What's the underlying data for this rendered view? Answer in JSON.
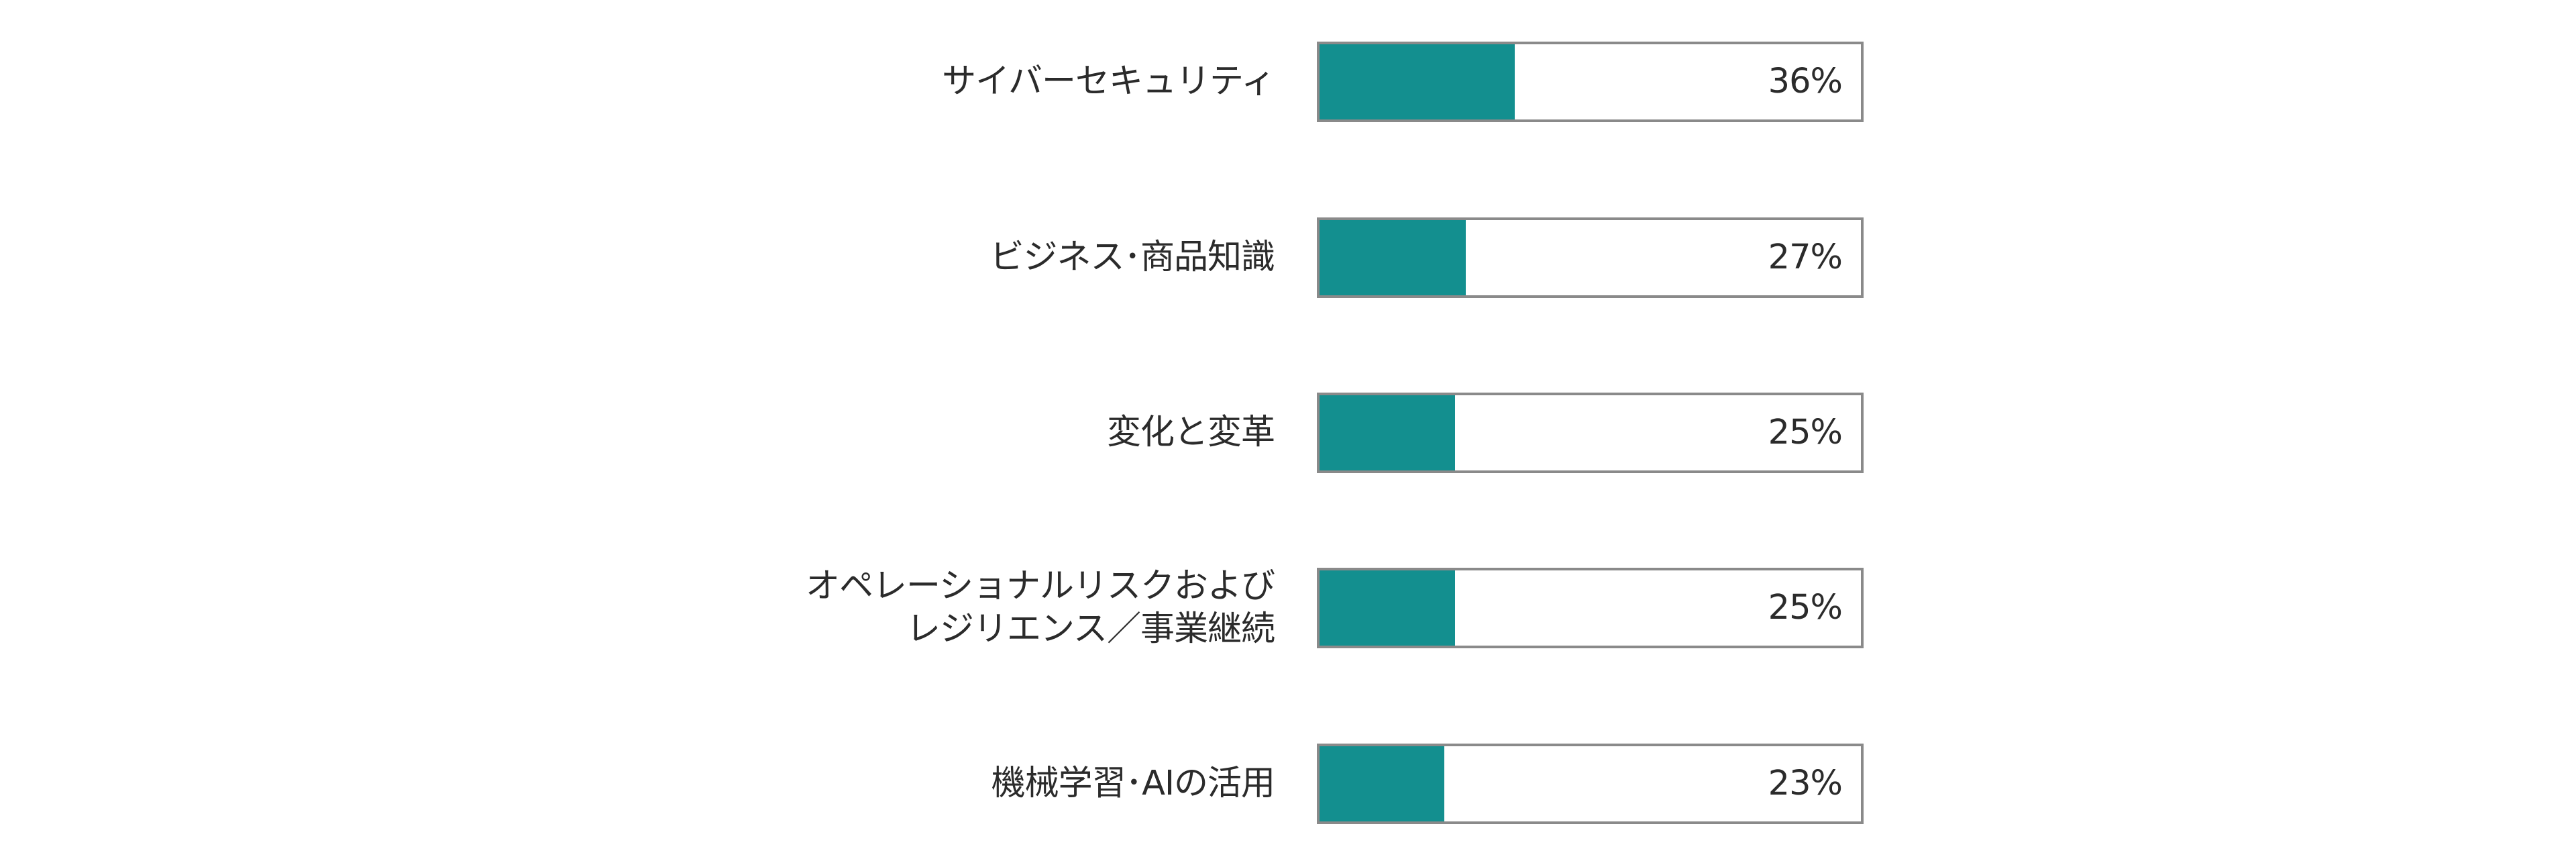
{
  "chart_data": {
    "type": "bar",
    "orientation": "horizontal",
    "categories": [
      [
        "サイバーセキュリティ"
      ],
      [
        "ビジネス･商品知識"
      ],
      [
        "変化と変革"
      ],
      [
        "オペレーショナルリスクおよび",
        "レジリエンス／事業継続"
      ],
      [
        "機械学習･AIの活用"
      ]
    ],
    "values": [
      36,
      27,
      25,
      25,
      23
    ],
    "value_labels": [
      "36%",
      "27%",
      "25%",
      "25%",
      "23%"
    ],
    "unit": "%",
    "xlim": [
      0,
      100
    ],
    "grid": false,
    "legend": "none"
  },
  "colors": {
    "bar_fill": "#138f8f",
    "bar_border": "#8a8a8a",
    "text": "#2b2b2b"
  }
}
